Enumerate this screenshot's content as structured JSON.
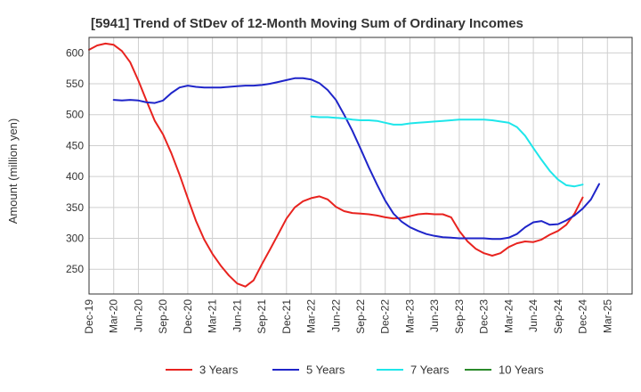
{
  "chart_data": {
    "type": "line",
    "title": "[5941]  Trend of StDev of 12-Month Moving Sum of Ordinary Incomes",
    "ylabel": "Amount (million yen)",
    "xlabel": "",
    "ylim": [
      210,
      625
    ],
    "yticks": [
      250,
      300,
      350,
      400,
      450,
      500,
      550,
      600
    ],
    "grid": true,
    "legend_position": "bottom",
    "xtick_labels": [
      "Dec-19",
      "Mar-20",
      "Jun-20",
      "Sep-20",
      "Dec-20",
      "Mar-21",
      "Jun-21",
      "Sep-21",
      "Dec-21",
      "Mar-22",
      "Jun-22",
      "Sep-22",
      "Dec-22",
      "Mar-23",
      "Jun-23",
      "Sep-23",
      "Dec-23",
      "Mar-24",
      "Jun-24",
      "Sep-24",
      "Dec-24",
      "Mar-25"
    ],
    "series": [
      {
        "name": "3 Years",
        "color": "#e8231f",
        "start_month_index": 0,
        "values": [
          605,
          612,
          615,
          613,
          603,
          585,
          555,
          522,
          490,
          468,
          438,
          403,
          365,
          328,
          298,
          275,
          256,
          240,
          227,
          222,
          232,
          258,
          282,
          307,
          332,
          350,
          360,
          365,
          368,
          363,
          351,
          344,
          341,
          340,
          339,
          337,
          334,
          332,
          333,
          336,
          339,
          340,
          339,
          339,
          334,
          312,
          295,
          283,
          276,
          272,
          276,
          286,
          292,
          295,
          294,
          298,
          306,
          312,
          322,
          340,
          366
        ]
      },
      {
        "name": "5 Years",
        "color": "#1f25c9",
        "start_month_index": 3,
        "values": [
          524,
          523,
          524,
          523,
          520,
          519,
          523,
          535,
          544,
          547,
          545,
          544,
          544,
          544,
          545,
          546,
          547,
          547,
          548,
          550,
          553,
          556,
          559,
          559,
          557,
          551,
          540,
          524,
          500,
          474,
          445,
          415,
          387,
          361,
          340,
          327,
          318,
          312,
          307,
          304,
          302,
          301,
          300,
          300,
          300,
          300,
          299,
          299,
          301,
          307,
          318,
          326,
          328,
          322,
          323,
          329,
          337,
          348,
          363,
          388
        ]
      },
      {
        "name": "7 Years",
        "color": "#1ee6ea",
        "start_month_index": 27,
        "values": [
          497,
          496,
          496,
          495,
          494,
          492,
          491,
          491,
          490,
          487,
          484,
          484,
          486,
          487,
          488,
          489,
          490,
          491,
          492,
          492,
          492,
          492,
          491,
          489,
          487,
          480,
          466,
          446,
          427,
          409,
          395,
          386,
          384,
          387
        ]
      },
      {
        "name": "10 Years",
        "color": "#2a8a2a",
        "start_month_index": 0,
        "values": []
      }
    ]
  }
}
